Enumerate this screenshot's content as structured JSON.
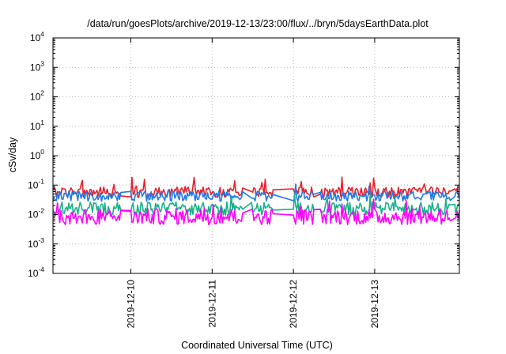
{
  "chart_data": {
    "type": "line",
    "title": "/data/run/goesPlots/archive/2019-12-13/23:00/flux/../bryn/5daysEarthData.plot",
    "xlabel": "Coordinated Universal Time (UTC)",
    "ylabel": "cSv/day",
    "yscale": "log",
    "ylim": [
      0.0001,
      10000
    ],
    "y_ticks": [
      {
        "base": "10",
        "exp": "-4"
      },
      {
        "base": "10",
        "exp": "-3"
      },
      {
        "base": "10",
        "exp": "-2"
      },
      {
        "base": "10",
        "exp": "-1"
      },
      {
        "base": "10",
        "exp": "0"
      },
      {
        "base": "10",
        "exp": "1"
      },
      {
        "base": "10",
        "exp": "2"
      },
      {
        "base": "10",
        "exp": "3"
      },
      {
        "base": "10",
        "exp": "4"
      }
    ],
    "xlim": [
      "2019-12-09T01:00",
      "2019-12-14T01:00"
    ],
    "x_ticks": [
      "2019-12-10",
      "2019-12-11",
      "2019-12-12",
      "2019-12-13"
    ],
    "grid": true,
    "legend": "none",
    "series": [
      {
        "color": "#e8202a",
        "base": 0.058,
        "spread": 0.35,
        "spike": 0.03
      },
      {
        "color": "#1e7be8",
        "base": 0.042,
        "spread": 0.35,
        "spike": 0.012
      },
      {
        "color": "#18b08a",
        "base": 0.016,
        "spread": 0.45,
        "spike": 0.04
      },
      {
        "color": "#ff00ff",
        "base": 0.0085,
        "spread": 0.55,
        "spike": 0.04
      }
    ],
    "gaps": [
      {
        "start": "2019-12-09T21:00",
        "end": "2019-12-10T00:00"
      },
      {
        "start": "2019-12-11T09:00",
        "end": "2019-12-11T11:30"
      },
      {
        "start": "2019-12-11T18:00",
        "end": "2019-12-12T00:00"
      },
      {
        "start": "2019-12-12T06:00",
        "end": "2019-12-12T08:00"
      },
      {
        "start": "2019-12-13T22:30",
        "end": "2019-12-13T23:30"
      }
    ]
  }
}
